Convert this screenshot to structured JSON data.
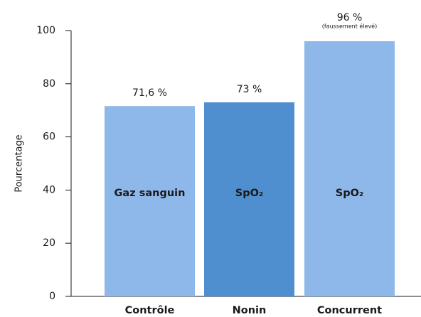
{
  "chart_data": {
    "type": "bar",
    "y_label": "Pourcentage",
    "categories": [
      "Contrôle",
      "Nonin",
      "Concurrent"
    ],
    "values": [
      71.6,
      73,
      96
    ],
    "value_labels": [
      "71,6 %",
      "73 %",
      "96 %"
    ],
    "bar_labels": [
      "Gaz sanguin",
      "SpO₂",
      "SpO₂"
    ],
    "annotation": "(faussement élevé)",
    "colors": [
      "#8fb8ea",
      "#4f8fcf",
      "#8fb8ea"
    ],
    "ylim": [
      0,
      100
    ],
    "yticks": [
      0,
      20,
      40,
      60,
      80,
      100
    ],
    "grid": false
  }
}
